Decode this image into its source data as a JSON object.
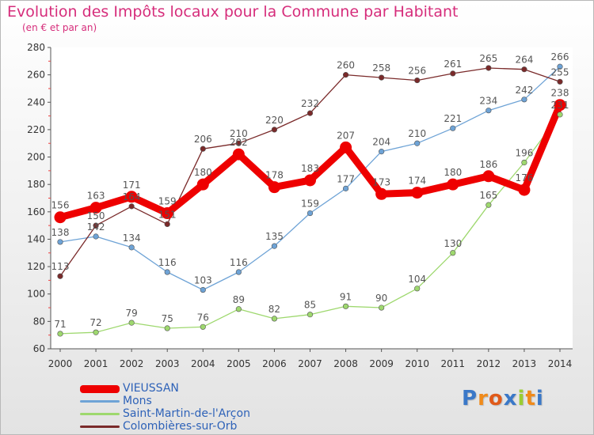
{
  "header": {
    "title": "Evolution des Impôts locaux pour la Commune par Habitant",
    "subtitle": "(en € et par an)"
  },
  "chart_data": {
    "type": "line",
    "title": "Evolution des Impôts locaux pour la Commune par Habitant",
    "subtitle": "(en € et par an)",
    "xlabel": "",
    "ylabel": "",
    "x": [
      "2000",
      "2001",
      "2002",
      "2003",
      "2004",
      "2005",
      "2006",
      "2007",
      "2008",
      "2009",
      "2010",
      "2011",
      "2012",
      "2013",
      "2014"
    ],
    "ylim": [
      60,
      280
    ],
    "yticks": [
      60,
      80,
      100,
      120,
      140,
      160,
      180,
      200,
      220,
      240,
      260,
      280
    ],
    "grid": false,
    "legend_position": "bottom-left",
    "series": [
      {
        "name": "VIEUSSAN",
        "color": "#ee0000",
        "emphasis": true,
        "values": [
          156,
          163,
          171,
          159,
          180,
          202,
          178,
          183,
          207,
          173,
          174,
          180,
          186,
          176,
          238
        ]
      },
      {
        "name": "Mons",
        "color": "#6ea3d6",
        "values": [
          138,
          142,
          134,
          116,
          103,
          116,
          135,
          159,
          177,
          204,
          210,
          221,
          234,
          242,
          266
        ]
      },
      {
        "name": "Saint-Martin-de-l'Arçon",
        "color": "#9ed86e",
        "values": [
          71,
          72,
          79,
          75,
          76,
          89,
          82,
          85,
          91,
          90,
          104,
          130,
          165,
          196,
          231
        ]
      },
      {
        "name": "Colombières-sur-Orb",
        "color": "#7a2a2a",
        "values": [
          113,
          150,
          164,
          151,
          206,
          210,
          220,
          232,
          260,
          258,
          256,
          261,
          265,
          264,
          255
        ]
      }
    ]
  },
  "logo": {
    "letters": [
      "P",
      "r",
      "o",
      "x",
      "i",
      "t",
      "i"
    ],
    "colors": [
      "#3a78c8",
      "#f08a1a",
      "#e05a1a",
      "#3a78c8",
      "#9acd32",
      "#f08a1a",
      "#3a78c8"
    ]
  }
}
